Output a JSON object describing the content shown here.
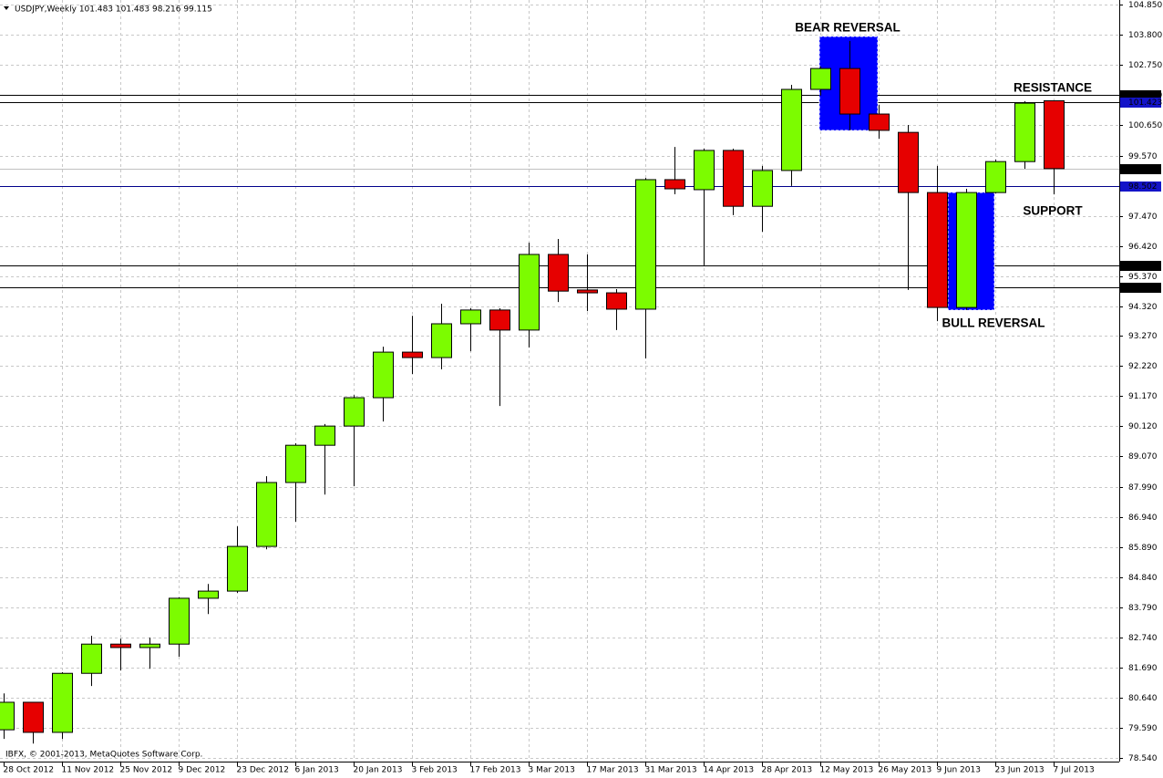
{
  "chart_data": {
    "type": "candlestick",
    "title": "USDJPY,Weekly  101.483 101.483 98.216 99.115",
    "copyright": "IBFX, © 2001-2013, MetaQuotes Software Corp.",
    "categories": [
      "28 Oct 2012",
      null,
      "11 Nov 2012",
      null,
      "25 Nov 2012",
      null,
      "9 Dec 2012",
      null,
      "23 Dec 2012",
      null,
      "6 Jan 2013",
      null,
      "20 Jan 2013",
      null,
      "3 Feb 2013",
      null,
      "17 Feb 2013",
      null,
      "3 Mar 2013",
      null,
      "17 Mar 2013",
      null,
      "31 Mar 2013",
      null,
      "14 Apr 2013",
      null,
      "28 Apr 2013",
      null,
      "12 May 2013",
      null,
      "26 May 2013",
      null,
      "9 Jun 2013",
      null,
      "23 Jun 2013",
      null,
      "7 Jul 2013"
    ],
    "open": [
      79.53,
      80.49,
      79.44,
      81.5,
      82.52,
      82.4,
      82.52,
      84.12,
      84.37,
      85.93,
      88.16,
      89.46,
      90.13,
      91.12,
      92.71,
      92.52,
      93.7,
      94.18,
      93.48,
      96.12,
      94.88,
      94.78,
      94.21,
      98.73,
      98.38,
      99.75,
      97.8,
      99.05,
      101.88,
      102.61,
      101.02,
      100.38,
      98.28,
      94.27,
      98.28,
      99.36,
      101.483
    ],
    "high": [
      80.8,
      80.49,
      81.54,
      82.81,
      82.71,
      82.75,
      84.15,
      84.62,
      86.63,
      88.38,
      89.53,
      90.2,
      91.21,
      92.9,
      93.98,
      94.4,
      94.24,
      94.24,
      96.53,
      96.66,
      96.12,
      94.91,
      98.79,
      99.87,
      99.81,
      99.81,
      99.21,
      102.04,
      102.68,
      103.57,
      101.34,
      100.64,
      99.21,
      98.41,
      99.43,
      101.47,
      101.483
    ],
    "low": [
      79.21,
      79.05,
      79.21,
      81.06,
      81.6,
      81.66,
      82.08,
      83.57,
      84.31,
      85.83,
      86.79,
      87.74,
      88.03,
      90.29,
      91.95,
      92.11,
      92.74,
      90.83,
      92.87,
      94.46,
      94.14,
      93.48,
      92.49,
      98.22,
      95.74,
      97.49,
      96.91,
      98.51,
      101.66,
      100.45,
      100.16,
      94.88,
      93.79,
      94.18,
      98.25,
      99.11,
      98.216
    ],
    "close": [
      80.49,
      79.44,
      81.5,
      82.52,
      82.4,
      82.52,
      84.12,
      84.37,
      85.93,
      88.16,
      89.46,
      90.13,
      91.12,
      92.71,
      92.52,
      93.7,
      94.18,
      93.48,
      96.12,
      94.84,
      94.78,
      94.21,
      98.73,
      98.41,
      99.75,
      97.8,
      99.05,
      101.88,
      102.61,
      101.02,
      100.45,
      98.28,
      94.27,
      98.28,
      99.36,
      101.4,
      99.115
    ],
    "up_color": "#7cfc00",
    "down_color": "#e60000",
    "ylim": [
      78.42,
      105.0
    ],
    "yticks": [
      {
        "value": 104.85,
        "label": "104.850"
      },
      {
        "value": 103.8,
        "label": "103.800"
      },
      {
        "value": 102.75,
        "label": "102.750"
      },
      {
        "value": 100.65,
        "label": "100.650"
      },
      {
        "value": 99.57,
        "label": "99.570"
      },
      {
        "value": 97.47,
        "label": "97.470"
      },
      {
        "value": 96.42,
        "label": "96.420"
      },
      {
        "value": 95.37,
        "label": "95.370"
      },
      {
        "value": 94.32,
        "label": "94.320"
      },
      {
        "value": 93.27,
        "label": "93.270"
      },
      {
        "value": 92.22,
        "label": "92.220"
      },
      {
        "value": 91.17,
        "label": "91.170"
      },
      {
        "value": 90.12,
        "label": "90.120"
      },
      {
        "value": 89.07,
        "label": "89.070"
      },
      {
        "value": 87.99,
        "label": "87.990"
      },
      {
        "value": 86.94,
        "label": "86.940"
      },
      {
        "value": 85.89,
        "label": "85.890"
      },
      {
        "value": 84.84,
        "label": "84.840"
      },
      {
        "value": 83.79,
        "label": "83.790"
      },
      {
        "value": 82.74,
        "label": "82.740"
      },
      {
        "value": 81.69,
        "label": "81.690"
      },
      {
        "value": 80.64,
        "label": "80.640"
      },
      {
        "value": 79.59,
        "label": "79.590"
      },
      {
        "value": 78.54,
        "label": "78.540"
      }
    ],
    "grid": true,
    "levels": [
      {
        "value": 101.69,
        "label": "101.690",
        "color": "#000000",
        "label_color": "#000000"
      },
      {
        "value": 101.423,
        "label": "101.423",
        "color": "#000000",
        "label_color": "#1414c8"
      },
      {
        "value": 99.115,
        "label": "99.115",
        "color": "#c0c0c0",
        "label_color": "#000000"
      },
      {
        "value": 98.502,
        "label": "98.502",
        "color": "#00008b",
        "label_color": "#1414c8"
      },
      {
        "value": 95.73,
        "label": "95.730",
        "color": "#000000",
        "label_color": "#000000"
      },
      {
        "value": 94.97,
        "label": "94.970",
        "color": "#000000",
        "label_color": "#000000"
      }
    ],
    "annotations": [
      "BEAR REVERSAL",
      "RESISTANCE",
      "SUPPORT",
      "BULL REVERSAL"
    ]
  }
}
